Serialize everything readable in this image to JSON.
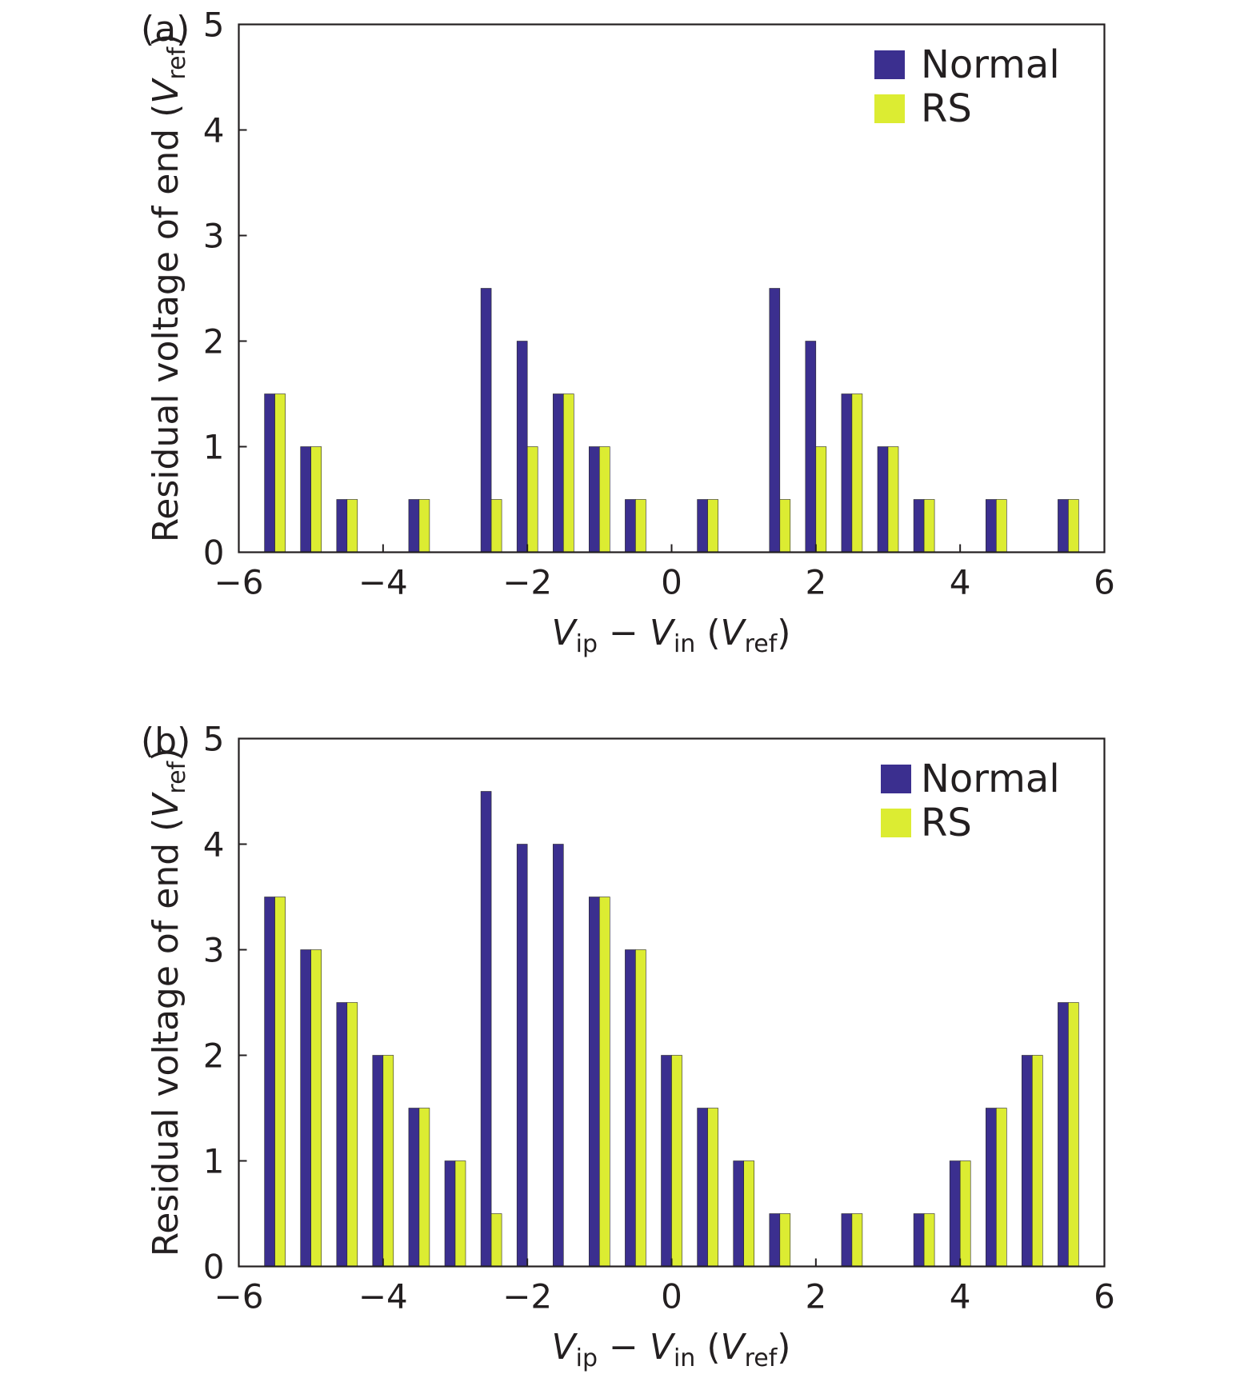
{
  "chart_data": [
    {
      "type": "bar",
      "panel_label": "(a)",
      "x": [
        -5.5,
        -5,
        -4.5,
        -3.5,
        -2.5,
        -2,
        -1.5,
        -1,
        -0.5,
        0.5,
        1.5,
        2,
        2.5,
        3,
        3.5,
        4.5,
        5.5
      ],
      "series": [
        {
          "name": "Normal",
          "color": "#3b2f8f",
          "values": [
            1.5,
            1,
            0.5,
            0.5,
            2.5,
            2,
            1.5,
            1,
            0.5,
            0.5,
            2.5,
            2,
            1.5,
            1,
            0.5,
            0.5,
            0.5
          ]
        },
        {
          "name": "RS",
          "color": "#dcec32",
          "values": [
            1.5,
            1,
            0.5,
            0.5,
            0.5,
            1,
            1.5,
            1,
            0.5,
            0.5,
            0.5,
            1,
            1.5,
            1,
            0.5,
            0.5,
            0.5
          ]
        }
      ],
      "xlim": [
        -6,
        6
      ],
      "ylim": [
        0,
        5
      ],
      "xticks": [
        -6,
        -4,
        -2,
        0,
        2,
        4,
        6
      ],
      "xtick_labels": [
        "−6",
        "−4",
        "−2",
        "0",
        "2",
        "4",
        "6"
      ],
      "yticks": [
        0,
        1,
        2,
        3,
        4,
        5
      ],
      "ytick_labels": [
        "0",
        "1",
        "2",
        "3",
        "4",
        "5"
      ],
      "xlabel": {
        "v": "V",
        "ip": "ip",
        "minus": " − ",
        "v2": "V",
        "in": "in",
        "open": " (",
        "v3": "V",
        "ref": "ref",
        "close": ")"
      },
      "ylabel": {
        "text": "Residual voltage of end (",
        "v": "V",
        "ref": "ref",
        "close": ")"
      },
      "legend": "top-right",
      "grid": false
    },
    {
      "type": "bar",
      "panel_label": "(b)",
      "x": [
        -5.5,
        -5,
        -4.5,
        -4,
        -3.5,
        -3,
        -2.5,
        -2,
        -1.5,
        -1,
        -0.5,
        0,
        0.5,
        1,
        1.5,
        2.5,
        3.5,
        4,
        4.5,
        5,
        5.5
      ],
      "series": [
        {
          "name": "Normal",
          "color": "#3b2f8f",
          "values": [
            3.5,
            3,
            2.5,
            2,
            1.5,
            1,
            4.5,
            4,
            4,
            3.5,
            3,
            2,
            1.5,
            1,
            0.5,
            0.5,
            0.5,
            1,
            1.5,
            2,
            2.5
          ]
        },
        {
          "name": "RS",
          "color": "#dcec32",
          "values": [
            3.5,
            3,
            2.5,
            2,
            1.5,
            1,
            0.5,
            0,
            0,
            3.5,
            3,
            2,
            1.5,
            1,
            0.5,
            0.5,
            0.5,
            1,
            1.5,
            2,
            2.5
          ]
        }
      ],
      "xlim": [
        -6,
        6
      ],
      "ylim": [
        0,
        5
      ],
      "xticks": [
        -6,
        -4,
        -2,
        0,
        2,
        4,
        6
      ],
      "xtick_labels": [
        "−6",
        "−4",
        "−2",
        "0",
        "2",
        "4",
        "6"
      ],
      "yticks": [
        0,
        1,
        2,
        3,
        4,
        5
      ],
      "ytick_labels": [
        "0",
        "1",
        "2",
        "3",
        "4",
        "5"
      ],
      "xlabel": {
        "v": "V",
        "ip": "ip",
        "minus": " − ",
        "v2": "V",
        "in": "in",
        "open": " (",
        "v3": "V",
        "ref": "ref",
        "close": ")"
      },
      "ylabel": {
        "text": "Residual voltage of end (",
        "v": "V",
        "ref": "ref",
        "close": ")"
      },
      "legend": "top-right",
      "grid": false
    }
  ]
}
